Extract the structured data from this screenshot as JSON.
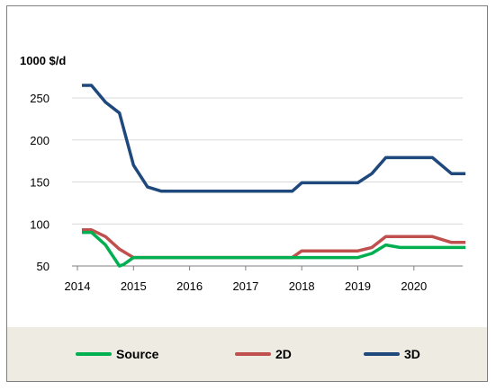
{
  "chart_data": {
    "type": "line",
    "ylabel": "1000 $/d",
    "xlabel": "",
    "title": "",
    "ylim": [
      50,
      275
    ],
    "xlim": [
      2014,
      2021
    ],
    "y_ticks": [
      "50",
      "100",
      "150",
      "200",
      "250"
    ],
    "x_ticks": [
      "2014",
      "2015",
      "2016",
      "2017",
      "2018",
      "2019",
      "2020"
    ],
    "grid": true,
    "legend_position": "bottom",
    "series": [
      {
        "name": "Source",
        "color": "#00b050",
        "points": [
          [
            2014.08,
            90
          ],
          [
            2014.25,
            90
          ],
          [
            2014.5,
            75
          ],
          [
            2014.75,
            50
          ],
          [
            2014.83,
            52
          ],
          [
            2015.0,
            60
          ],
          [
            2015.5,
            60
          ],
          [
            2016.0,
            60
          ],
          [
            2016.5,
            60
          ],
          [
            2017.0,
            60
          ],
          [
            2017.5,
            60
          ],
          [
            2017.83,
            60
          ],
          [
            2018.0,
            60
          ],
          [
            2018.5,
            60
          ],
          [
            2019.0,
            60
          ],
          [
            2019.25,
            65
          ],
          [
            2019.5,
            75
          ],
          [
            2019.75,
            72
          ],
          [
            2020.0,
            72
          ],
          [
            2020.5,
            72
          ],
          [
            2020.75,
            72
          ],
          [
            2020.92,
            72
          ]
        ]
      },
      {
        "name": "2D",
        "color": "#c0504d",
        "points": [
          [
            2014.08,
            93
          ],
          [
            2014.25,
            93
          ],
          [
            2014.5,
            85
          ],
          [
            2014.75,
            70
          ],
          [
            2015.0,
            60
          ],
          [
            2015.5,
            60
          ],
          [
            2016.0,
            60
          ],
          [
            2016.5,
            60
          ],
          [
            2017.0,
            60
          ],
          [
            2017.5,
            60
          ],
          [
            2017.83,
            60
          ],
          [
            2018.0,
            68
          ],
          [
            2018.5,
            68
          ],
          [
            2019.0,
            68
          ],
          [
            2019.25,
            72
          ],
          [
            2019.5,
            85
          ],
          [
            2020.0,
            85
          ],
          [
            2020.33,
            85
          ],
          [
            2020.67,
            78
          ],
          [
            2020.92,
            78
          ]
        ]
      },
      {
        "name": "3D",
        "color": "#1f497d",
        "points": [
          [
            2014.08,
            265
          ],
          [
            2014.25,
            265
          ],
          [
            2014.5,
            245
          ],
          [
            2014.75,
            232
          ],
          [
            2015.0,
            170
          ],
          [
            2015.25,
            144
          ],
          [
            2015.5,
            139
          ],
          [
            2016.0,
            139
          ],
          [
            2016.5,
            139
          ],
          [
            2017.0,
            139
          ],
          [
            2017.5,
            139
          ],
          [
            2017.83,
            139
          ],
          [
            2018.0,
            149
          ],
          [
            2018.5,
            149
          ],
          [
            2019.0,
            149
          ],
          [
            2019.25,
            160
          ],
          [
            2019.5,
            179
          ],
          [
            2020.0,
            179
          ],
          [
            2020.33,
            179
          ],
          [
            2020.67,
            160
          ],
          [
            2020.92,
            160
          ]
        ]
      }
    ]
  }
}
